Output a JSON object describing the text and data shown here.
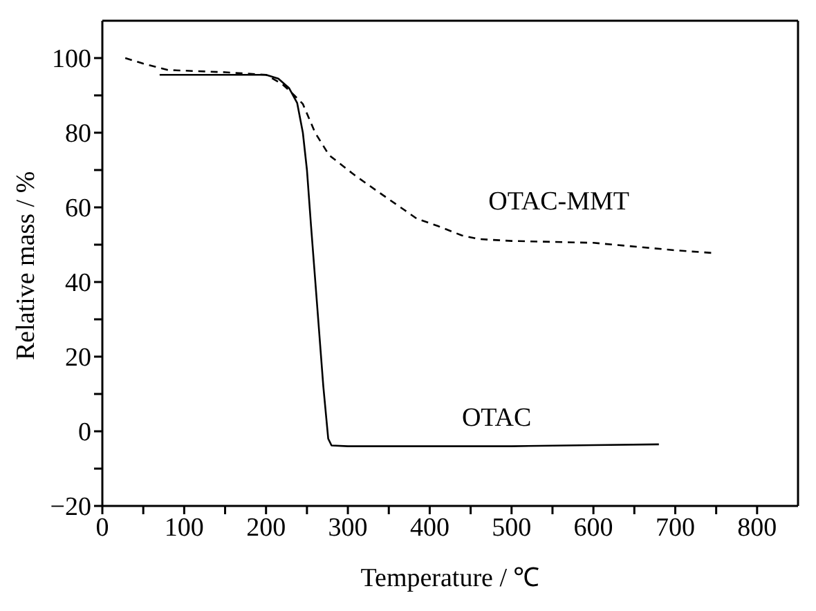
{
  "chart_data": {
    "type": "line",
    "xlabel": "Temperature / ℃",
    "ylabel": "Relative mass / %",
    "xlim": [
      0,
      850
    ],
    "ylim": [
      -20,
      110
    ],
    "xticks": [
      0,
      {
        "value": 50,
        "label": null
      },
      100,
      {
        "value": 150,
        "label": null
      },
      200,
      {
        "value": 250,
        "label": null
      },
      300,
      {
        "value": 350,
        "label": null
      },
      400,
      {
        "value": 450,
        "label": null
      },
      500,
      {
        "value": 550,
        "label": null
      },
      600,
      {
        "value": 650,
        "label": null
      },
      700,
      {
        "value": 750,
        "label": null
      },
      800
    ],
    "yticks": [
      -20,
      {
        "value": -10,
        "label": null
      },
      0,
      {
        "value": 10,
        "label": null
      },
      20,
      {
        "value": 30,
        "label": null
      },
      40,
      {
        "value": 50,
        "label": null
      },
      60,
      {
        "value": 70,
        "label": null
      },
      80,
      {
        "value": 90,
        "label": null
      },
      100
    ],
    "marker": "none",
    "series": [
      {
        "name": "OTAC",
        "color": "#000000",
        "line_style": "solid",
        "x": [
          70,
          150,
          200,
          215,
          228,
          238,
          245,
          250,
          255,
          262,
          270,
          276,
          280,
          300,
          400,
          500,
          600,
          680
        ],
        "values": [
          95.5,
          95.5,
          95.5,
          94.5,
          92,
          88,
          80,
          70,
          55,
          35,
          12,
          -2,
          -3.8,
          -4,
          -4,
          -4,
          -3.7,
          -3.5
        ]
      },
      {
        "name": "OTAC-MMT",
        "color": "#000000",
        "line_style": "dashed",
        "x": [
          28,
          50,
          80,
          150,
          200,
          220,
          230,
          245,
          260,
          277,
          309,
          342,
          369,
          384,
          410,
          439,
          460,
          500,
          600,
          700,
          744
        ],
        "values": [
          100,
          98.5,
          96.8,
          96.2,
          95.5,
          93,
          91,
          87.7,
          80,
          74,
          68.5,
          63.4,
          59.3,
          57,
          55,
          52.5,
          51.5,
          51,
          50.5,
          48.5,
          47.8
        ]
      }
    ]
  }
}
